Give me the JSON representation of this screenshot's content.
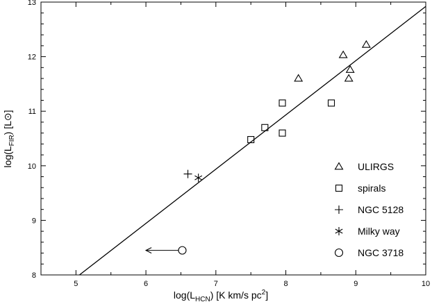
{
  "chart_data": {
    "type": "scatter",
    "xlim": [
      4.5,
      10
    ],
    "ylim": [
      8,
      13
    ],
    "x_ticks": [
      5,
      6,
      7,
      8,
      9,
      10
    ],
    "y_ticks": [
      8,
      9,
      10,
      11,
      12,
      13
    ],
    "xlabel": {
      "prefix": "log(L",
      "sub": "HCN",
      "middle": ") [K km/s pc",
      "sup": "2",
      "suffix": "]"
    },
    "ylabel": {
      "prefix": "log(L",
      "sub": "FIR",
      "suffix": ") [L⊙]"
    },
    "fit_line": {
      "x": [
        5.05,
        10.0
      ],
      "y": [
        8.0,
        12.92
      ]
    },
    "series": [
      {
        "name": "ULIRGS",
        "marker": "triangle",
        "points": [
          [
            8.18,
            11.6
          ],
          [
            8.82,
            12.03
          ],
          [
            8.9,
            11.6
          ],
          [
            8.92,
            11.76
          ],
          [
            9.15,
            12.22
          ]
        ]
      },
      {
        "name": "spirals",
        "marker": "square",
        "points": [
          [
            7.5,
            10.48
          ],
          [
            7.7,
            10.7
          ],
          [
            7.95,
            10.6
          ],
          [
            7.95,
            11.15
          ],
          [
            8.65,
            11.15
          ]
        ]
      },
      {
        "name": "NGC 5128",
        "marker": "plus",
        "points": [
          [
            6.6,
            9.85
          ]
        ]
      },
      {
        "name": "Milky way",
        "marker": "asterisk",
        "points": [
          [
            6.75,
            9.78
          ]
        ]
      },
      {
        "name": "NGC 3718",
        "marker": "circle",
        "points": [
          [
            6.52,
            8.45
          ]
        ],
        "upper_limit_arrow_to_x": 6.0
      }
    ],
    "legend_position": "lower-right"
  }
}
